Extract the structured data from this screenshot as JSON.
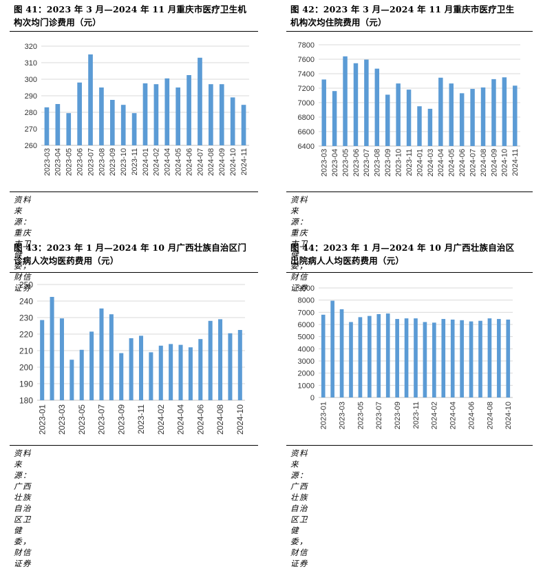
{
  "panels": [
    {
      "title": "图 41：2023 年 3 月—2024 年 11 月重庆市医疗卫生机\n构次均门诊费用（元）",
      "source": "资料来源：重庆市卫健委，财信证券",
      "chart_data": {
        "type": "bar",
        "title": "",
        "xlabel": "",
        "ylabel": "",
        "ylim": [
          260,
          320
        ],
        "yticks": [
          260,
          270,
          280,
          290,
          300,
          310,
          320
        ],
        "grid": true,
        "legend": "none",
        "color": "#5b9bd5",
        "categories": [
          "2023-03",
          "2023-04",
          "2023-05",
          "2023-06",
          "2023-07",
          "2023-08",
          "2023-09",
          "2023-10",
          "2023-11",
          "2024-01",
          "2024-02",
          "2024-04",
          "2024-05",
          "2024-06",
          "2024-07",
          "2024-08",
          "2024-09",
          "2024-10",
          "2024-11"
        ],
        "values": [
          283,
          285,
          279.5,
          298,
          315,
          295,
          287.5,
          284.5,
          279.5,
          297.5,
          297,
          300.5,
          295,
          302.5,
          313,
          297,
          297,
          289,
          284.5
        ]
      }
    },
    {
      "title": "图 42：2023 年 3 月—2024 年 11 月重庆市医疗卫生\n机构次均住院费用（元）",
      "source": "资料来源：重庆市卫健委，财信证券",
      "chart_data": {
        "type": "bar",
        "title": "",
        "xlabel": "",
        "ylabel": "",
        "ylim": [
          6400,
          7800
        ],
        "yticks": [
          6400,
          6600,
          6800,
          7000,
          7200,
          7400,
          7600,
          7800
        ],
        "grid": true,
        "legend": "none",
        "color": "#5b9bd5",
        "categories": [
          "2023-03",
          "2023-04",
          "2023-05",
          "2023-06",
          "2023-07",
          "2023-08",
          "2023-09",
          "2023-10",
          "2023-11",
          "2024-01",
          "2024-03",
          "2024-04",
          "2024-05",
          "2024-06",
          "2024-07",
          "2024-08",
          "2024-09",
          "2024-10",
          "2024-11"
        ],
        "values": [
          7320,
          7160,
          7640,
          7545,
          7595,
          7470,
          7110,
          7265,
          7180,
          6950,
          6915,
          7345,
          7265,
          7130,
          7190,
          7210,
          7325,
          7350,
          7235
        ]
      }
    },
    {
      "title": "图 43：2023 年 1 月—2024 年 10 月广西壮族自治区门\n诊病人次均医药费用（元）",
      "source": "资料来源：广西壮族自治区卫健委，财信证券",
      "chart_data": {
        "type": "bar",
        "title": "",
        "xlabel": "",
        "ylabel": "",
        "ylim": [
          180,
          250
        ],
        "yticks": [
          180,
          190,
          200,
          210,
          220,
          230,
          240,
          250
        ],
        "grid": true,
        "legend": "none",
        "color": "#5b9bd5",
        "categories": [
          "2023-01",
          "2023-02",
          "2023-03",
          "2023-04",
          "2023-05",
          "2023-06",
          "2023-07",
          "2023-08",
          "2023-09",
          "2023-10",
          "2023-11",
          "2023-12",
          "2024-02",
          "2024-03",
          "2024-04",
          "2024-05",
          "2024-06",
          "2024-07",
          "2024-08",
          "2024-09",
          "2024-10"
        ],
        "tick_labels": [
          "2023-01",
          "",
          "2023-03",
          "",
          "2023-05",
          "",
          "2023-07",
          "",
          "2023-09",
          "",
          "2023-11",
          "",
          "2024-02",
          "",
          "2024-04",
          "",
          "2024-06",
          "",
          "2024-08",
          "",
          "2024-10"
        ],
        "values": [
          228.5,
          242.5,
          229.5,
          204.5,
          210.5,
          221.5,
          235.5,
          232,
          208.5,
          217.5,
          219,
          209,
          213,
          214,
          213.5,
          212,
          217,
          228,
          229,
          220.5,
          222.5
        ]
      }
    },
    {
      "title": "图 44：2023 年 1 月—2024 年 10 月广西壮族自治区\n出院病人人均医药费用（元）",
      "source": "资料来源：广西壮族自治区卫健委，财信证券",
      "chart_data": {
        "type": "bar",
        "title": "",
        "xlabel": "",
        "ylabel": "",
        "ylim": [
          0,
          9000
        ],
        "yticks": [
          0,
          1000,
          2000,
          3000,
          4000,
          5000,
          6000,
          7000,
          8000,
          9000
        ],
        "grid": true,
        "legend": "none",
        "color": "#5b9bd5",
        "categories": [
          "2023-01",
          "2023-02",
          "2023-03",
          "2023-04",
          "2023-05",
          "2023-06",
          "2023-07",
          "2023-08",
          "2023-09",
          "2023-10",
          "2023-11",
          "2023-12",
          "2024-02",
          "2024-03",
          "2024-04",
          "2024-05",
          "2024-06",
          "2024-07",
          "2024-08",
          "2024-09",
          "2024-10"
        ],
        "tick_labels": [
          "2023-01",
          "",
          "2023-03",
          "",
          "2023-05",
          "",
          "2023-07",
          "",
          "2023-09",
          "",
          "2023-11",
          "",
          "2024-02",
          "",
          "2024-04",
          "",
          "2024-06",
          "",
          "2024-08",
          "",
          "2024-10"
        ],
        "values": [
          6800,
          7950,
          7250,
          6200,
          6600,
          6700,
          6850,
          6900,
          6450,
          6500,
          6500,
          6200,
          6150,
          6450,
          6400,
          6350,
          6250,
          6300,
          6500,
          6450,
          6400
        ]
      }
    }
  ]
}
